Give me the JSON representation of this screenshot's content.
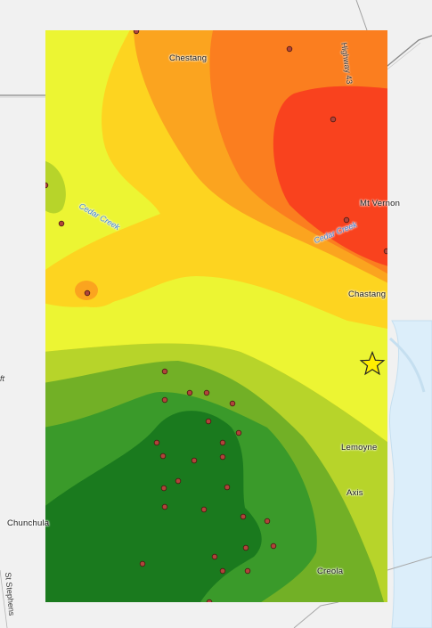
{
  "map": {
    "place_labels": {
      "chestang_north": "Chestang",
      "mt_vernon": "Mt Vernon",
      "chastang": "Chastang",
      "lemoyne": "Lemoyne",
      "axis": "Axis",
      "creola": "Creola",
      "chunchula": "Chunchula"
    },
    "road_labels": {
      "highway_43": "Highway 43",
      "st_stephens": "St Stephens",
      "partial_left": "ft"
    },
    "water_labels": {
      "cedar_creek_west": "Cedar Creek",
      "cedar_creek_east": "Cedar Creek"
    },
    "colors": {
      "basemap": "#f1f1f1",
      "water": "#dceefa",
      "road": "#8a8a8a",
      "class_dark_green": "#1a7a1e",
      "class_green": "#3a9a2a",
      "class_mid_green": "#72b026",
      "class_light_green": "#b7d42a",
      "class_yellow": "#ecf533",
      "class_gold": "#fdd420",
      "class_orange_light": "#fba41f",
      "class_orange": "#fb7e1f",
      "class_red": "#f9421e",
      "sample_point": "#b0443b",
      "star_marker": "#ffee00"
    },
    "marker_icon": "star-icon",
    "sample_point_icon": "sample-point-icon"
  }
}
